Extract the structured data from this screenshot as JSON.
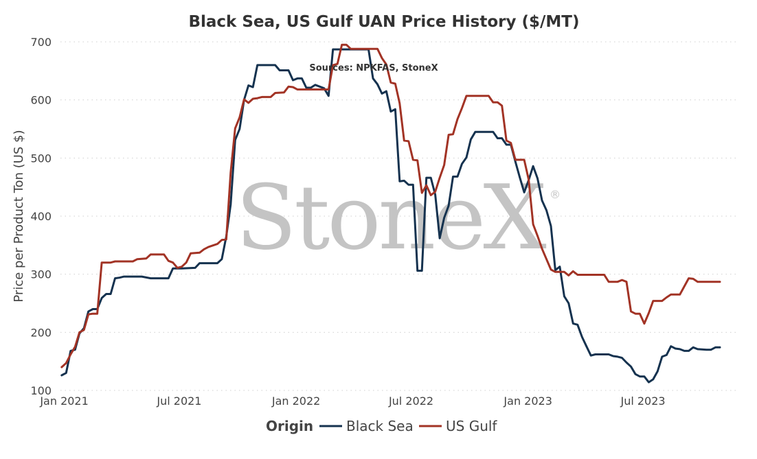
{
  "chart_data": {
    "type": "line",
    "title": "Black Sea, US Gulf UAN Price History ($/MT)",
    "subtitle": "Sources: NPKFAS, StoneX",
    "xlabel": "",
    "ylabel": "Price per Product Ton (US $)",
    "ylim": [
      100,
      700
    ],
    "yticks": [
      100,
      200,
      300,
      400,
      500,
      600,
      700
    ],
    "xlim": [
      "2020-12-26",
      "2023-11-25"
    ],
    "xticks": [
      {
        "date": "2021-01-01",
        "label": "Jan 2021"
      },
      {
        "date": "2021-07-01",
        "label": "Jul 2021"
      },
      {
        "date": "2022-01-01",
        "label": "Jan 2022"
      },
      {
        "date": "2022-07-01",
        "label": "Jul 2022"
      },
      {
        "date": "2023-01-01",
        "label": "Jan 2023"
      },
      {
        "date": "2023-07-01",
        "label": "Jul 2023"
      }
    ],
    "grid": "horizontal dotted",
    "legend": {
      "title": "Origin",
      "position": "bottom-center"
    },
    "watermark": "StoneX",
    "series": [
      {
        "name": "Black Sea",
        "color": "#15324f",
        "points": [
          [
            "2020-12-28",
            126
          ],
          [
            "2021-01-04",
            130
          ],
          [
            "2021-01-11",
            168
          ],
          [
            "2021-01-18",
            170
          ],
          [
            "2021-01-25",
            198
          ],
          [
            "2021-02-01",
            207
          ],
          [
            "2021-02-08",
            236
          ],
          [
            "2021-02-15",
            240
          ],
          [
            "2021-02-22",
            240
          ],
          [
            "2021-03-01",
            259
          ],
          [
            "2021-03-08",
            266
          ],
          [
            "2021-03-15",
            266
          ],
          [
            "2021-03-22",
            293
          ],
          [
            "2021-03-29",
            294
          ],
          [
            "2021-04-05",
            296
          ],
          [
            "2021-04-19",
            296
          ],
          [
            "2021-05-03",
            296
          ],
          [
            "2021-05-17",
            293
          ],
          [
            "2021-06-07",
            293
          ],
          [
            "2021-06-14",
            293
          ],
          [
            "2021-06-21",
            310
          ],
          [
            "2021-07-05",
            310
          ],
          [
            "2021-07-26",
            311
          ],
          [
            "2021-08-02",
            319
          ],
          [
            "2021-08-23",
            319
          ],
          [
            "2021-08-30",
            319
          ],
          [
            "2021-09-06",
            326
          ],
          [
            "2021-09-13",
            365
          ],
          [
            "2021-09-20",
            420
          ],
          [
            "2021-09-27",
            531
          ],
          [
            "2021-10-04",
            550
          ],
          [
            "2021-10-11",
            600
          ],
          [
            "2021-10-18",
            625
          ],
          [
            "2021-10-25",
            622
          ],
          [
            "2021-11-01",
            660
          ],
          [
            "2021-11-22",
            660
          ],
          [
            "2021-11-29",
            660
          ],
          [
            "2021-12-06",
            651
          ],
          [
            "2021-12-20",
            651
          ],
          [
            "2021-12-27",
            634
          ],
          [
            "2022-01-03",
            637
          ],
          [
            "2022-01-10",
            637
          ],
          [
            "2022-01-17",
            621
          ],
          [
            "2022-01-24",
            621
          ],
          [
            "2022-01-31",
            626
          ],
          [
            "2022-02-07",
            623
          ],
          [
            "2022-02-14",
            620
          ],
          [
            "2022-02-21",
            607
          ],
          [
            "2022-02-28",
            687
          ],
          [
            "2022-03-28",
            687
          ],
          [
            "2022-04-18",
            687
          ],
          [
            "2022-04-25",
            687
          ],
          [
            "2022-05-02",
            637
          ],
          [
            "2022-05-09",
            627
          ],
          [
            "2022-05-16",
            611
          ],
          [
            "2022-05-23",
            615
          ],
          [
            "2022-05-30",
            580
          ],
          [
            "2022-06-06",
            584
          ],
          [
            "2022-06-13",
            460
          ],
          [
            "2022-06-20",
            461
          ],
          [
            "2022-06-27",
            454
          ],
          [
            "2022-07-04",
            454
          ],
          [
            "2022-07-11",
            306
          ],
          [
            "2022-07-18",
            306
          ],
          [
            "2022-07-25",
            466
          ],
          [
            "2022-08-01",
            466
          ],
          [
            "2022-08-08",
            437
          ],
          [
            "2022-08-15",
            362
          ],
          [
            "2022-08-22",
            397
          ],
          [
            "2022-08-29",
            418
          ],
          [
            "2022-09-05",
            468
          ],
          [
            "2022-09-12",
            468
          ],
          [
            "2022-09-19",
            490
          ],
          [
            "2022-09-26",
            501
          ],
          [
            "2022-10-03",
            532
          ],
          [
            "2022-10-10",
            545
          ],
          [
            "2022-10-17",
            545
          ],
          [
            "2022-11-07",
            545
          ],
          [
            "2022-11-14",
            534
          ],
          [
            "2022-11-21",
            534
          ],
          [
            "2022-11-28",
            523
          ],
          [
            "2022-12-05",
            523
          ],
          [
            "2022-12-12",
            494
          ],
          [
            "2022-12-19",
            467
          ],
          [
            "2022-12-26",
            441
          ],
          [
            "2023-01-02",
            462
          ],
          [
            "2023-01-09",
            486
          ],
          [
            "2023-01-16",
            465
          ],
          [
            "2023-01-23",
            427
          ],
          [
            "2023-01-30",
            410
          ],
          [
            "2023-02-06",
            383
          ],
          [
            "2023-02-13",
            307
          ],
          [
            "2023-02-20",
            313
          ],
          [
            "2023-02-27",
            262
          ],
          [
            "2023-03-06",
            250
          ],
          [
            "2023-03-13",
            215
          ],
          [
            "2023-03-20",
            213
          ],
          [
            "2023-03-27",
            192
          ],
          [
            "2023-04-03",
            176
          ],
          [
            "2023-04-10",
            160
          ],
          [
            "2023-04-17",
            162
          ],
          [
            "2023-05-08",
            162
          ],
          [
            "2023-05-15",
            159
          ],
          [
            "2023-05-22",
            158
          ],
          [
            "2023-05-29",
            156
          ],
          [
            "2023-06-05",
            148
          ],
          [
            "2023-06-12",
            141
          ],
          [
            "2023-06-19",
            128
          ],
          [
            "2023-06-26",
            124
          ],
          [
            "2023-07-03",
            124
          ],
          [
            "2023-07-10",
            114
          ],
          [
            "2023-07-17",
            119
          ],
          [
            "2023-07-24",
            133
          ],
          [
            "2023-07-31",
            158
          ],
          [
            "2023-08-07",
            161
          ],
          [
            "2023-08-14",
            176
          ],
          [
            "2023-08-21",
            172
          ],
          [
            "2023-08-28",
            171
          ],
          [
            "2023-09-04",
            168
          ],
          [
            "2023-09-11",
            168
          ],
          [
            "2023-09-18",
            174
          ],
          [
            "2023-09-25",
            171
          ],
          [
            "2023-10-09",
            170
          ],
          [
            "2023-10-16",
            170
          ],
          [
            "2023-10-23",
            174
          ],
          [
            "2023-10-30",
            174
          ]
        ]
      },
      {
        "name": "US Gulf",
        "color": "#a23325",
        "points": [
          [
            "2020-12-28",
            140
          ],
          [
            "2021-01-04",
            147
          ],
          [
            "2021-01-11",
            162
          ],
          [
            "2021-01-18",
            175
          ],
          [
            "2021-01-25",
            200
          ],
          [
            "2021-02-01",
            204
          ],
          [
            "2021-02-08",
            231
          ],
          [
            "2021-02-15",
            232
          ],
          [
            "2021-02-22",
            232
          ],
          [
            "2021-03-01",
            320
          ],
          [
            "2021-03-15",
            320
          ],
          [
            "2021-03-22",
            322
          ],
          [
            "2021-04-05",
            322
          ],
          [
            "2021-04-19",
            322
          ],
          [
            "2021-04-26",
            326
          ],
          [
            "2021-05-10",
            327
          ],
          [
            "2021-05-17",
            334
          ],
          [
            "2021-06-07",
            334
          ],
          [
            "2021-06-14",
            323
          ],
          [
            "2021-06-21",
            320
          ],
          [
            "2021-06-28",
            311
          ],
          [
            "2021-07-05",
            313
          ],
          [
            "2021-07-12",
            320
          ],
          [
            "2021-07-19",
            336
          ],
          [
            "2021-08-02",
            337
          ],
          [
            "2021-08-09",
            343
          ],
          [
            "2021-08-16",
            347
          ],
          [
            "2021-08-30",
            352
          ],
          [
            "2021-09-06",
            359
          ],
          [
            "2021-09-13",
            360
          ],
          [
            "2021-09-20",
            475
          ],
          [
            "2021-09-27",
            551
          ],
          [
            "2021-10-04",
            570
          ],
          [
            "2021-10-11",
            601
          ],
          [
            "2021-10-18",
            595
          ],
          [
            "2021-10-25",
            602
          ],
          [
            "2021-11-01",
            603
          ],
          [
            "2021-11-08",
            605
          ],
          [
            "2021-11-22",
            605
          ],
          [
            "2021-11-29",
            612
          ],
          [
            "2021-12-13",
            613
          ],
          [
            "2021-12-20",
            623
          ],
          [
            "2021-12-27",
            622
          ],
          [
            "2022-01-03",
            618
          ],
          [
            "2022-01-31",
            618
          ],
          [
            "2022-02-21",
            618
          ],
          [
            "2022-02-28",
            660
          ],
          [
            "2022-03-07",
            662
          ],
          [
            "2022-03-14",
            695
          ],
          [
            "2022-03-21",
            695
          ],
          [
            "2022-03-28",
            688
          ],
          [
            "2022-04-25",
            688
          ],
          [
            "2022-05-02",
            688
          ],
          [
            "2022-05-09",
            688
          ],
          [
            "2022-05-16",
            672
          ],
          [
            "2022-05-23",
            661
          ],
          [
            "2022-05-30",
            630
          ],
          [
            "2022-06-06",
            628
          ],
          [
            "2022-06-13",
            594
          ],
          [
            "2022-06-20",
            530
          ],
          [
            "2022-06-27",
            529
          ],
          [
            "2022-07-04",
            497
          ],
          [
            "2022-07-11",
            496
          ],
          [
            "2022-07-18",
            440
          ],
          [
            "2022-07-25",
            453
          ],
          [
            "2022-08-01",
            436
          ],
          [
            "2022-08-08",
            442
          ],
          [
            "2022-08-15",
            466
          ],
          [
            "2022-08-22",
            488
          ],
          [
            "2022-08-29",
            540
          ],
          [
            "2022-09-05",
            541
          ],
          [
            "2022-09-12",
            567
          ],
          [
            "2022-09-19",
            586
          ],
          [
            "2022-09-26",
            607
          ],
          [
            "2022-10-31",
            607
          ],
          [
            "2022-11-07",
            596
          ],
          [
            "2022-11-14",
            596
          ],
          [
            "2022-11-21",
            590
          ],
          [
            "2022-11-28",
            530
          ],
          [
            "2022-12-05",
            526
          ],
          [
            "2022-12-12",
            497
          ],
          [
            "2022-12-19",
            497
          ],
          [
            "2022-12-26",
            497
          ],
          [
            "2023-01-02",
            463
          ],
          [
            "2023-01-09",
            386
          ],
          [
            "2023-01-16",
            366
          ],
          [
            "2023-01-23",
            344
          ],
          [
            "2023-01-30",
            326
          ],
          [
            "2023-02-06",
            308
          ],
          [
            "2023-02-13",
            304
          ],
          [
            "2023-02-20",
            304
          ],
          [
            "2023-02-27",
            304
          ],
          [
            "2023-03-06",
            298
          ],
          [
            "2023-03-13",
            305
          ],
          [
            "2023-03-20",
            299
          ],
          [
            "2023-04-03",
            299
          ],
          [
            "2023-05-01",
            299
          ],
          [
            "2023-05-08",
            287
          ],
          [
            "2023-05-15",
            287
          ],
          [
            "2023-05-22",
            287
          ],
          [
            "2023-05-29",
            290
          ],
          [
            "2023-06-05",
            287
          ],
          [
            "2023-06-12",
            236
          ],
          [
            "2023-06-19",
            232
          ],
          [
            "2023-06-26",
            232
          ],
          [
            "2023-07-03",
            215
          ],
          [
            "2023-07-10",
            233
          ],
          [
            "2023-07-17",
            254
          ],
          [
            "2023-07-31",
            254
          ],
          [
            "2023-08-07",
            260
          ],
          [
            "2023-08-14",
            265
          ],
          [
            "2023-08-28",
            265
          ],
          [
            "2023-09-04",
            279
          ],
          [
            "2023-09-11",
            293
          ],
          [
            "2023-09-18",
            292
          ],
          [
            "2023-09-25",
            287
          ],
          [
            "2023-10-30",
            287
          ]
        ]
      }
    ]
  }
}
